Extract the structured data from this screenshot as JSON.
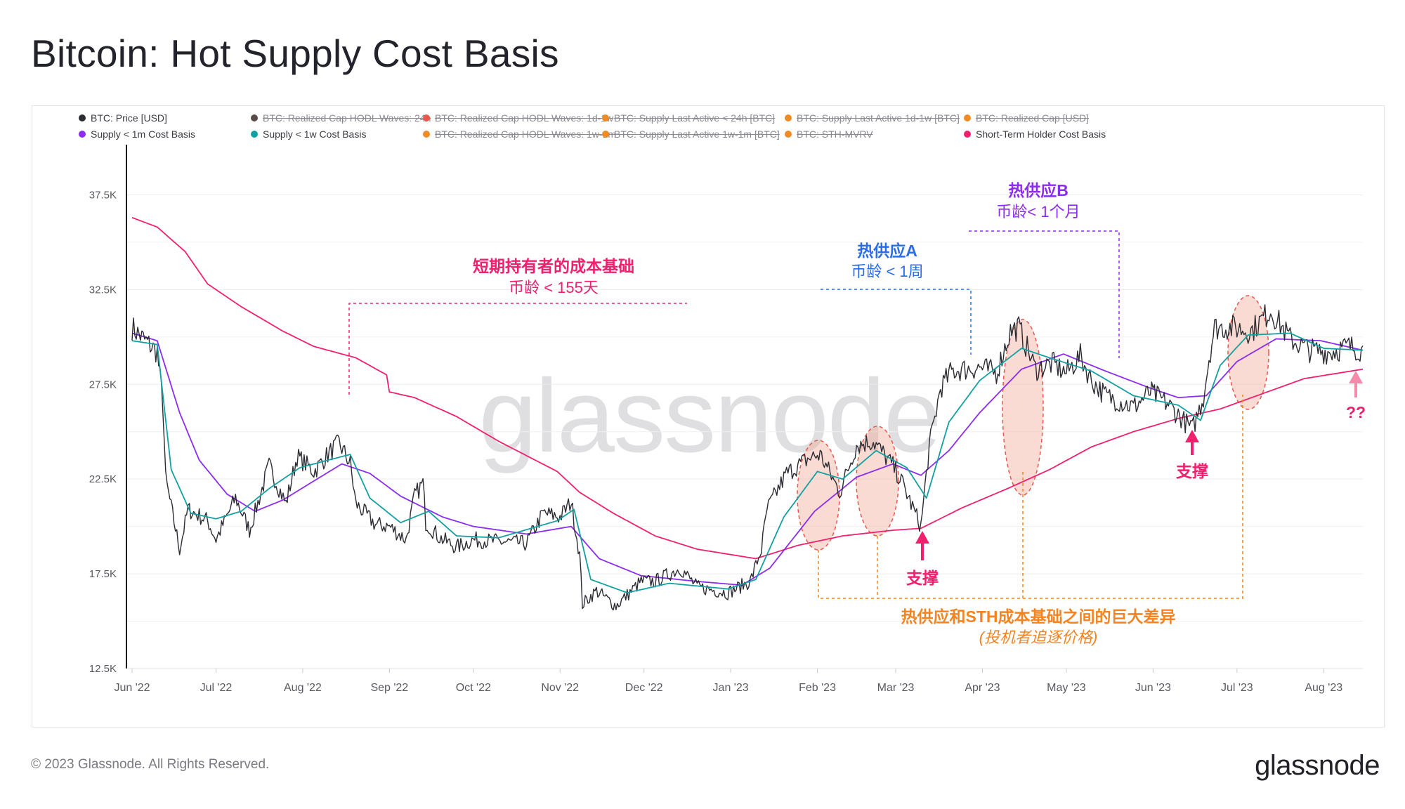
{
  "title": "Bitcoin: Hot Supply Cost Basis",
  "footer": "© 2023 Glassnode. All Rights Reserved.",
  "brand": "glassnode",
  "watermark": "glassnode",
  "legend": [
    {
      "label": "BTC: Price [USD]",
      "color": "#2b2b33",
      "active": true
    },
    {
      "label": "BTC: Realized Cap HODL Waves: 24h",
      "color": "#5a4a4a",
      "active": false
    },
    {
      "label": "BTC: Realized Cap HODL Waves: 1d-1w",
      "color": "#e8584e",
      "active": false
    },
    {
      "label": "BTC: Supply Last Active < 24h [BTC]",
      "color": "#f08a24",
      "active": false
    },
    {
      "label": "BTC: Supply Last Active 1d-1w [BTC]",
      "color": "#f08a24",
      "active": false
    },
    {
      "label": "BTC: Realized Cap [USD]",
      "color": "#f08a24",
      "active": false
    },
    {
      "label": "Supply < 1m Cost Basis",
      "color": "#8b2cf0",
      "active": true
    },
    {
      "label": "Supply < 1w Cost Basis",
      "color": "#12a0a0",
      "active": true
    },
    {
      "label": "BTC: Realized Cap HODL Waves: 1w-1m",
      "color": "#f08a24",
      "active": false
    },
    {
      "label": "BTC: Supply Last Active 1w-1m [BTC]",
      "color": "#f08a24",
      "active": false
    },
    {
      "label": "BTC: STH-MVRV",
      "color": "#f08a24",
      "active": false
    },
    {
      "label": "Short-Term Holder Cost Basis",
      "color": "#f0206e",
      "active": true
    }
  ],
  "annotations": {
    "sth_title": "短期持有者的成本基础",
    "sth_sub": "币龄 < 155天",
    "hotA_title": "热供应A",
    "hotA_sub": "币龄 < 1周",
    "hotB_title": "热供应B",
    "hotB_sub": "币龄< 1个月",
    "support": "支撑",
    "question": "??",
    "gap_title": "热供应和STH成本基础之间的巨大差异",
    "gap_sub": "(投机者追逐价格)"
  },
  "colors": {
    "price": "#2b2b33",
    "c1m": "#8b2cf0",
    "c1w": "#12a0a0",
    "sth": "#f0206e",
    "orange": "#f5831f",
    "blue": "#2a6de8",
    "purple": "#8b2cf0",
    "pink": "#f0206e"
  },
  "chart_data": {
    "type": "line",
    "title": "Bitcoin: Hot Supply Cost Basis",
    "x_range": [
      "2022-06-01",
      "2023-08-15"
    ],
    "ylim": [
      12500,
      40000
    ],
    "y_ticks": [
      12500,
      17500,
      22500,
      27500,
      32500,
      37500
    ],
    "y_tick_labels": [
      "12.5K",
      "17.5K",
      "22.5K",
      "27.5K",
      "32.5K",
      "37.5K"
    ],
    "x_ticks": [
      "2022-06-01",
      "2022-07-01",
      "2022-08-01",
      "2022-09-01",
      "2022-10-01",
      "2022-11-01",
      "2022-12-01",
      "2023-01-01",
      "2023-02-01",
      "2023-03-01",
      "2023-04-01",
      "2023-05-01",
      "2023-06-01",
      "2023-07-01",
      "2023-08-01"
    ],
    "x_tick_labels": [
      "Jun '22",
      "Jul '22",
      "Aug '22",
      "Sep '22",
      "Oct '22",
      "Nov '22",
      "Dec '22",
      "Jan '23",
      "Feb '23",
      "Mar '23",
      "Apr '23",
      "May '23",
      "Jun '23",
      "Jul '23",
      "Aug '23"
    ],
    "grid": true,
    "legend_position": "top",
    "series": [
      {
        "name": "BTC: Price [USD]",
        "points": [
          [
            "2022-06-01",
            30500
          ],
          [
            "2022-06-05",
            29900
          ],
          [
            "2022-06-10",
            29200
          ],
          [
            "2022-06-12",
            26500
          ],
          [
            "2022-06-13",
            22500
          ],
          [
            "2022-06-15",
            21000
          ],
          [
            "2022-06-18",
            18800
          ],
          [
            "2022-06-21",
            20900
          ],
          [
            "2022-06-28",
            20300
          ],
          [
            "2022-07-01",
            19300
          ],
          [
            "2022-07-08",
            21500
          ],
          [
            "2022-07-13",
            19800
          ],
          [
            "2022-07-20",
            23200
          ],
          [
            "2022-07-26",
            21200
          ],
          [
            "2022-07-30",
            23700
          ],
          [
            "2022-08-05",
            22900
          ],
          [
            "2022-08-10",
            23800
          ],
          [
            "2022-08-14",
            24400
          ],
          [
            "2022-08-18",
            23300
          ],
          [
            "2022-08-20",
            21200
          ],
          [
            "2022-08-27",
            20100
          ],
          [
            "2022-09-01",
            20000
          ],
          [
            "2022-09-07",
            19300
          ],
          [
            "2022-09-10",
            21600
          ],
          [
            "2022-09-13",
            22300
          ],
          [
            "2022-09-14",
            20200
          ],
          [
            "2022-09-19",
            19400
          ],
          [
            "2022-09-25",
            18900
          ],
          [
            "2022-10-01",
            19300
          ],
          [
            "2022-10-10",
            19200
          ],
          [
            "2022-10-20",
            19100
          ],
          [
            "2022-10-26",
            20700
          ],
          [
            "2022-11-01",
            20500
          ],
          [
            "2022-11-05",
            21300
          ],
          [
            "2022-11-08",
            18500
          ],
          [
            "2022-11-09",
            15900
          ],
          [
            "2022-11-14",
            16600
          ],
          [
            "2022-11-21",
            15800
          ],
          [
            "2022-11-30",
            17100
          ],
          [
            "2022-12-05",
            17100
          ],
          [
            "2022-12-14",
            17800
          ],
          [
            "2022-12-20",
            16800
          ],
          [
            "2022-12-31",
            16500
          ],
          [
            "2023-01-08",
            17100
          ],
          [
            "2023-01-12",
            18800
          ],
          [
            "2023-01-14",
            20900
          ],
          [
            "2023-01-21",
            22800
          ],
          [
            "2023-01-29",
            23600
          ],
          [
            "2023-02-02",
            23800
          ],
          [
            "2023-02-09",
            21800
          ],
          [
            "2023-02-15",
            24300
          ],
          [
            "2023-02-21",
            24500
          ],
          [
            "2023-02-28",
            23200
          ],
          [
            "2023-03-03",
            22400
          ],
          [
            "2023-03-10",
            20000
          ],
          [
            "2023-03-13",
            24200
          ],
          [
            "2023-03-17",
            27300
          ],
          [
            "2023-03-21",
            28200
          ],
          [
            "2023-03-31",
            28400
          ],
          [
            "2023-04-06",
            28100
          ],
          [
            "2023-04-11",
            30300
          ],
          [
            "2023-04-14",
            30500
          ],
          [
            "2023-04-20",
            28300
          ],
          [
            "2023-04-26",
            28600
          ],
          [
            "2023-05-01",
            28100
          ],
          [
            "2023-05-06",
            29000
          ],
          [
            "2023-05-10",
            27700
          ],
          [
            "2023-05-15",
            26900
          ],
          [
            "2023-05-25",
            26300
          ],
          [
            "2023-05-31",
            27100
          ],
          [
            "2023-06-06",
            26500
          ],
          [
            "2023-06-10",
            25900
          ],
          [
            "2023-06-15",
            25100
          ],
          [
            "2023-06-19",
            26800
          ],
          [
            "2023-06-21",
            28900
          ],
          [
            "2023-06-23",
            30500
          ],
          [
            "2023-06-30",
            30500
          ],
          [
            "2023-07-06",
            30300
          ],
          [
            "2023-07-13",
            31400
          ],
          [
            "2023-07-20",
            29900
          ],
          [
            "2023-07-27",
            29300
          ],
          [
            "2023-08-03",
            29200
          ],
          [
            "2023-08-10",
            29500
          ],
          [
            "2023-08-15",
            29300
          ]
        ]
      },
      {
        "name": "Supply < 1m Cost Basis",
        "points": [
          [
            "2022-06-01",
            30200
          ],
          [
            "2022-06-10",
            29800
          ],
          [
            "2022-06-18",
            26000
          ],
          [
            "2022-06-25",
            23500
          ],
          [
            "2022-07-05",
            21700
          ],
          [
            "2022-07-15",
            20800
          ],
          [
            "2022-07-25",
            21400
          ],
          [
            "2022-08-05",
            22400
          ],
          [
            "2022-08-15",
            23300
          ],
          [
            "2022-08-25",
            22800
          ],
          [
            "2022-09-05",
            21600
          ],
          [
            "2022-09-20",
            20500
          ],
          [
            "2022-10-01",
            20000
          ],
          [
            "2022-10-20",
            19600
          ],
          [
            "2022-11-05",
            20000
          ],
          [
            "2022-11-15",
            18300
          ],
          [
            "2022-11-30",
            17400
          ],
          [
            "2022-12-20",
            17100
          ],
          [
            "2023-01-05",
            16900
          ],
          [
            "2023-01-15",
            17800
          ],
          [
            "2023-01-31",
            20800
          ],
          [
            "2023-02-15",
            22600
          ],
          [
            "2023-02-28",
            23300
          ],
          [
            "2023-03-10",
            22700
          ],
          [
            "2023-03-20",
            24000
          ],
          [
            "2023-03-31",
            26000
          ],
          [
            "2023-04-15",
            28300
          ],
          [
            "2023-04-30",
            29100
          ],
          [
            "2023-05-15",
            28200
          ],
          [
            "2023-05-31",
            27300
          ],
          [
            "2023-06-10",
            26800
          ],
          [
            "2023-06-20",
            26900
          ],
          [
            "2023-07-01",
            28700
          ],
          [
            "2023-07-15",
            29900
          ],
          [
            "2023-07-31",
            29800
          ],
          [
            "2023-08-15",
            29300
          ]
        ]
      },
      {
        "name": "Supply < 1w Cost Basis",
        "points": [
          [
            "2022-06-01",
            29800
          ],
          [
            "2022-06-10",
            29600
          ],
          [
            "2022-06-15",
            23000
          ],
          [
            "2022-06-22",
            20700
          ],
          [
            "2022-07-01",
            20400
          ],
          [
            "2022-07-10",
            20800
          ],
          [
            "2022-07-20",
            22000
          ],
          [
            "2022-07-31",
            23100
          ],
          [
            "2022-08-10",
            23500
          ],
          [
            "2022-08-18",
            23800
          ],
          [
            "2022-08-25",
            21500
          ],
          [
            "2022-09-05",
            20200
          ],
          [
            "2022-09-15",
            20800
          ],
          [
            "2022-09-25",
            19500
          ],
          [
            "2022-10-10",
            19400
          ],
          [
            "2022-10-31",
            20300
          ],
          [
            "2022-11-06",
            20900
          ],
          [
            "2022-11-12",
            17200
          ],
          [
            "2022-11-25",
            16500
          ],
          [
            "2022-12-10",
            17000
          ],
          [
            "2022-12-31",
            16700
          ],
          [
            "2023-01-10",
            17200
          ],
          [
            "2023-01-20",
            20500
          ],
          [
            "2023-02-01",
            22900
          ],
          [
            "2023-02-10",
            22500
          ],
          [
            "2023-02-22",
            24000
          ],
          [
            "2023-03-05",
            23100
          ],
          [
            "2023-03-12",
            21500
          ],
          [
            "2023-03-20",
            25500
          ],
          [
            "2023-03-31",
            27700
          ],
          [
            "2023-04-15",
            29400
          ],
          [
            "2023-04-25",
            28900
          ],
          [
            "2023-05-10",
            28200
          ],
          [
            "2023-05-25",
            26900
          ],
          [
            "2023-06-10",
            26400
          ],
          [
            "2023-06-18",
            25600
          ],
          [
            "2023-06-25",
            28500
          ],
          [
            "2023-07-05",
            30100
          ],
          [
            "2023-07-20",
            30200
          ],
          [
            "2023-08-01",
            29400
          ],
          [
            "2023-08-15",
            29300
          ]
        ]
      },
      {
        "name": "Short-Term Holder Cost Basis",
        "points": [
          [
            "2022-06-01",
            36300
          ],
          [
            "2022-06-10",
            35800
          ],
          [
            "2022-06-20",
            34500
          ],
          [
            "2022-06-28",
            32800
          ],
          [
            "2022-07-10",
            31600
          ],
          [
            "2022-07-25",
            30300
          ],
          [
            "2022-08-05",
            29500
          ],
          [
            "2022-08-20",
            28900
          ],
          [
            "2022-08-31",
            28000
          ],
          [
            "2022-09-01",
            27100
          ],
          [
            "2022-09-10",
            26800
          ],
          [
            "2022-09-25",
            25800
          ],
          [
            "2022-10-10",
            24500
          ],
          [
            "2022-10-31",
            22900
          ],
          [
            "2022-11-08",
            21800
          ],
          [
            "2022-11-20",
            20700
          ],
          [
            "2022-12-05",
            19500
          ],
          [
            "2022-12-20",
            18800
          ],
          [
            "2023-01-10",
            18300
          ],
          [
            "2023-01-25",
            19000
          ],
          [
            "2023-02-10",
            19500
          ],
          [
            "2023-02-28",
            19800
          ],
          [
            "2023-03-10",
            19900
          ],
          [
            "2023-03-25",
            21000
          ],
          [
            "2023-04-10",
            22000
          ],
          [
            "2023-04-25",
            23000
          ],
          [
            "2023-05-10",
            24200
          ],
          [
            "2023-05-25",
            25000
          ],
          [
            "2023-06-10",
            25700
          ],
          [
            "2023-06-25",
            26200
          ],
          [
            "2023-07-10",
            27000
          ],
          [
            "2023-07-25",
            27800
          ],
          [
            "2023-08-15",
            28300
          ]
        ]
      }
    ]
  }
}
